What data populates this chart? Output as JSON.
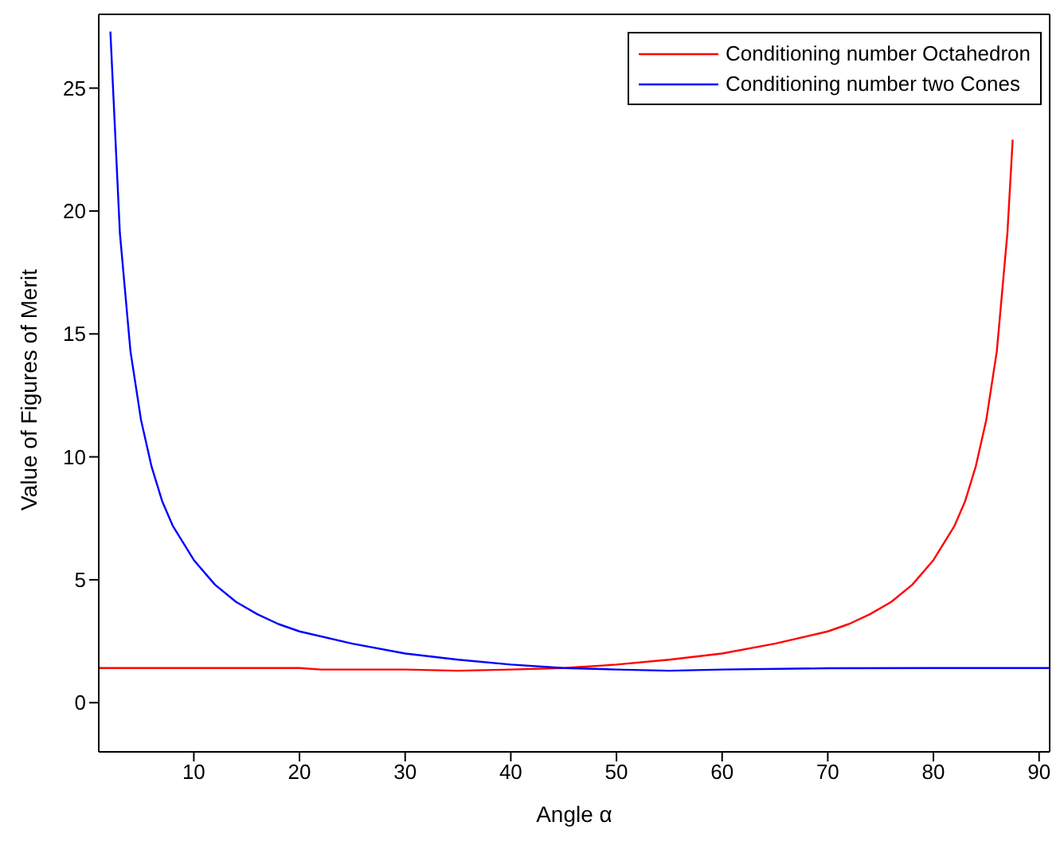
{
  "chart_data": {
    "type": "line",
    "xlabel": "Angle α",
    "ylabel": "Value of Figures of Merit",
    "xlim": [
      1,
      91
    ],
    "xticks": [
      10,
      20,
      30,
      40,
      50,
      60,
      70,
      80,
      90
    ],
    "ylim": [
      -2,
      28
    ],
    "yticks": [
      0,
      5,
      10,
      15,
      20,
      25
    ],
    "legend": "top right",
    "marker": "none",
    "line_style": "solid",
    "series": [
      {
        "name": "Conditioning number Octahedron",
        "color": "#ff0000",
        "x": [
          1,
          10,
          20,
          22,
          30,
          35,
          40,
          45,
          50,
          55,
          60,
          65,
          70,
          72,
          74,
          76,
          78,
          80,
          82,
          83,
          84,
          85,
          86,
          87,
          87.5
        ],
        "values": [
          1.41,
          1.41,
          1.41,
          1.35,
          1.35,
          1.3,
          1.35,
          1.41,
          1.55,
          1.75,
          2.0,
          2.4,
          2.9,
          3.2,
          3.6,
          4.1,
          4.8,
          5.8,
          7.2,
          8.2,
          9.6,
          11.5,
          14.3,
          19.1,
          22.9
        ]
      },
      {
        "name": "Conditioning number two Cones",
        "color": "#0000ff",
        "x": [
          2.1,
          3,
          4,
          5,
          6,
          7,
          8,
          10,
          12,
          14,
          16,
          18,
          20,
          25,
          30,
          35,
          40,
          45,
          50,
          55,
          60,
          70,
          80,
          91
        ],
        "values": [
          27.3,
          19.1,
          14.3,
          11.5,
          9.6,
          8.2,
          7.2,
          5.8,
          4.8,
          4.1,
          3.6,
          3.2,
          2.9,
          2.4,
          2.0,
          1.75,
          1.55,
          1.41,
          1.35,
          1.3,
          1.35,
          1.4,
          1.41,
          1.41
        ]
      }
    ]
  }
}
